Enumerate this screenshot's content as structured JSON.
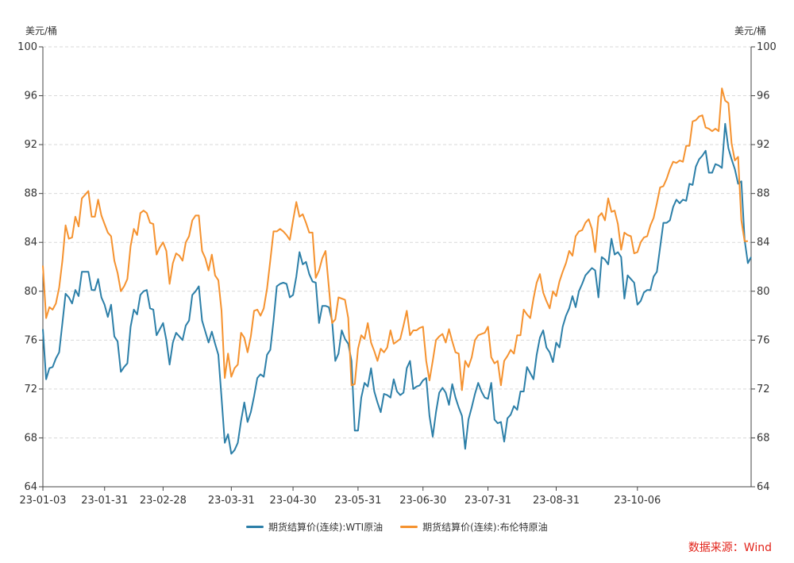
{
  "unit_left": "美元/桶",
  "unit_right": "美元/桶",
  "source": "数据来源：Wind",
  "colors": {
    "wti": "#2c7fa8",
    "brent": "#f5922f",
    "source": "#e2231a",
    "grid": "#d9d9d9",
    "axis": "#444444"
  },
  "chart_data": {
    "type": "line",
    "title": "",
    "xlabel": "",
    "ylabel": "美元/桶",
    "ylim": [
      64,
      100
    ],
    "yticks": [
      64,
      68,
      72,
      76,
      80,
      84,
      88,
      92,
      96,
      100
    ],
    "x_ticks": [
      {
        "label": "23-01-03",
        "i": 0
      },
      {
        "label": "23-01-31",
        "i": 19
      },
      {
        "label": "23-02-28",
        "i": 37
      },
      {
        "label": "23-03-31",
        "i": 58
      },
      {
        "label": "23-04-30",
        "i": 77
      },
      {
        "label": "23-05-31",
        "i": 97
      },
      {
        "label": "23-06-30",
        "i": 117
      },
      {
        "label": "23-07-31",
        "i": 137
      },
      {
        "label": "23-08-31",
        "i": 158
      },
      {
        "label": "23-10-06",
        "i": 183
      }
    ],
    "grid": true,
    "legend": "bottom",
    "series": [
      {
        "name": "期货结算价(连续):WTI原油",
        "values": [
          76.9,
          72.8,
          73.7,
          73.8,
          74.5,
          75.0,
          77.4,
          79.8,
          79.5,
          79.0,
          80.1,
          79.6,
          81.6,
          81.6,
          81.6,
          80.1,
          80.1,
          81.0,
          79.5,
          78.9,
          77.9,
          78.9,
          76.3,
          75.9,
          73.4,
          73.8,
          74.1,
          77.1,
          78.5,
          78.1,
          79.7,
          80.0,
          80.1,
          78.6,
          78.5,
          76.4,
          76.9,
          77.4,
          76.0,
          74.0,
          75.8,
          76.6,
          76.3,
          76.0,
          77.2,
          77.6,
          79.7,
          80.0,
          80.4,
          77.6,
          76.7,
          75.8,
          76.7,
          75.7,
          74.8,
          71.3,
          67.6,
          68.3,
          66.7,
          67.0,
          67.6,
          69.4,
          70.9,
          69.3,
          70.1,
          71.4,
          72.9,
          73.2,
          73.0,
          74.8,
          75.2,
          77.6,
          80.4,
          80.6,
          80.7,
          80.6,
          79.5,
          79.7,
          81.2,
          83.2,
          82.2,
          82.4,
          81.4,
          80.8,
          80.7,
          77.4,
          78.8,
          78.8,
          78.7,
          77.6,
          74.3,
          74.9,
          76.8,
          76.1,
          75.7,
          74.3,
          68.6,
          68.6,
          71.3,
          72.5,
          72.2,
          73.7,
          71.8,
          70.9,
          70.1,
          71.6,
          71.5,
          71.3,
          72.8,
          71.8,
          71.5,
          71.7,
          73.7,
          74.3,
          72.0,
          72.2,
          72.3,
          72.7,
          72.9,
          69.8,
          68.1,
          70.1,
          71.7,
          72.1,
          71.7,
          70.7,
          72.4,
          71.3,
          70.5,
          69.8,
          67.1,
          69.5,
          70.5,
          71.6,
          72.5,
          71.8,
          71.3,
          71.2,
          72.5,
          69.5,
          69.2,
          69.3,
          67.7,
          69.6,
          69.9,
          70.6,
          70.3,
          71.8,
          71.8,
          73.8,
          73.3,
          72.8,
          74.8,
          76.2,
          76.8,
          75.4,
          75.0,
          74.2,
          75.8,
          75.4,
          77.1,
          78.0,
          78.6,
          79.6,
          78.7,
          80.0,
          80.6,
          81.3,
          81.6,
          81.9,
          81.7,
          79.5,
          82.8,
          82.6,
          82.2,
          84.3,
          83.0,
          83.2,
          82.8,
          79.4,
          81.3,
          81.0,
          80.7,
          78.9,
          79.2,
          79.9,
          80.1,
          80.1,
          81.2,
          81.6,
          83.6,
          85.6,
          85.6,
          85.8,
          86.9,
          87.5,
          87.2,
          87.5,
          87.4,
          88.8,
          88.7,
          90.2,
          90.8,
          91.1,
          91.5,
          89.7,
          89.7,
          90.4,
          90.3,
          90.1,
          93.7,
          91.7,
          90.8,
          90.0,
          88.8,
          89.0,
          84.2,
          82.3,
          82.8
        ]
      },
      {
        "name": "期货结算价(连续):布伦特原油",
        "values": [
          82.1,
          77.8,
          78.7,
          78.5,
          79.0,
          80.3,
          82.5,
          85.4,
          84.3,
          84.4,
          86.1,
          85.3,
          87.6,
          87.9,
          88.2,
          86.1,
          86.1,
          87.5,
          86.2,
          85.5,
          84.8,
          84.5,
          82.5,
          81.5,
          80.0,
          80.4,
          81.0,
          83.7,
          85.1,
          84.6,
          86.4,
          86.6,
          86.4,
          85.6,
          85.5,
          83.0,
          83.6,
          84.0,
          83.3,
          80.6,
          82.3,
          83.1,
          82.9,
          82.5,
          84.0,
          84.5,
          85.8,
          86.2,
          86.2,
          83.3,
          82.7,
          81.7,
          83.0,
          81.3,
          80.9,
          78.4,
          72.9,
          74.9,
          73.0,
          73.7,
          74.0,
          76.6,
          76.2,
          75.0,
          76.3,
          78.4,
          78.5,
          78.0,
          78.6,
          80.2,
          82.5,
          84.9,
          84.9,
          85.1,
          84.9,
          84.6,
          84.2,
          85.8,
          87.3,
          86.1,
          86.3,
          85.6,
          84.8,
          84.8,
          81.1,
          81.7,
          82.7,
          83.3,
          80.4,
          77.4,
          77.7,
          79.5,
          79.4,
          79.3,
          77.8,
          72.3,
          72.4,
          75.3,
          76.4,
          76.1,
          77.4,
          75.8,
          75.1,
          74.3,
          75.3,
          75.0,
          75.4,
          76.8,
          75.7,
          75.9,
          76.1,
          77.2,
          78.4,
          76.4,
          76.8,
          76.8,
          77.0,
          77.1,
          74.3,
          72.7,
          74.3,
          76.0,
          76.3,
          76.5,
          75.8,
          76.9,
          75.9,
          75.0,
          74.9,
          71.9,
          74.3,
          73.8,
          74.6,
          76.0,
          76.4,
          76.5,
          76.6,
          77.1,
          74.6,
          74.1,
          74.3,
          72.3,
          74.3,
          74.7,
          75.2,
          74.9,
          76.4,
          76.4,
          78.5,
          78.1,
          77.8,
          79.4,
          80.7,
          81.4,
          79.9,
          79.2,
          78.6,
          80.0,
          79.6,
          80.8,
          81.6,
          82.3,
          83.3,
          82.9,
          84.5,
          84.9,
          85.0,
          85.6,
          85.9,
          85.1,
          83.2,
          86.1,
          86.4,
          85.8,
          87.6,
          86.5,
          86.6,
          85.5,
          83.4,
          84.8,
          84.6,
          84.5,
          83.1,
          83.2,
          84.0,
          84.4,
          84.5,
          85.4,
          86.0,
          87.2,
          88.5,
          88.6,
          89.2,
          90.0,
          90.6,
          90.5,
          90.7,
          90.6,
          91.9,
          91.9,
          93.9,
          94.0,
          94.3,
          94.4,
          93.4,
          93.3,
          93.1,
          93.3,
          93.1,
          96.6,
          95.6,
          95.4,
          92.1,
          90.7,
          91.0,
          85.8,
          84.1,
          84.1
        ]
      }
    ]
  }
}
